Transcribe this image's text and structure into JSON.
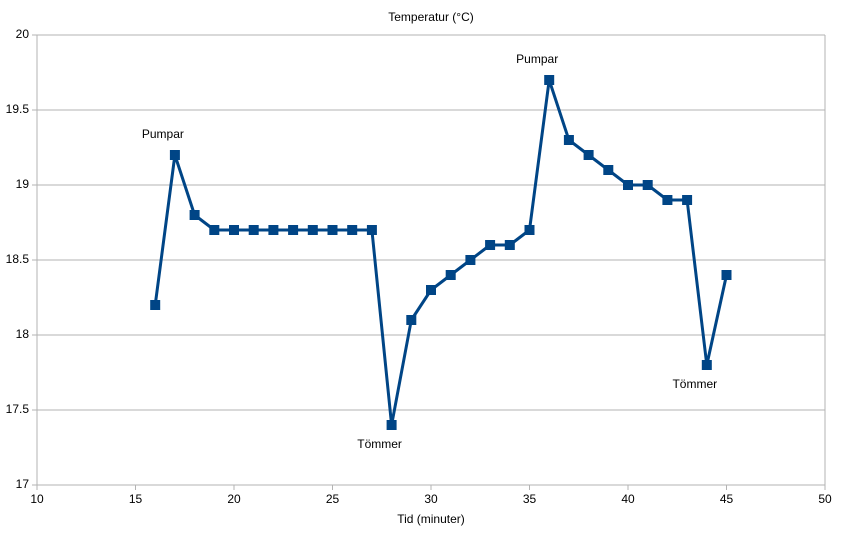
{
  "chart_data": {
    "type": "line",
    "title": "Temperatur (°C)",
    "x_label": "Tid (minuter)",
    "x": [
      16,
      17,
      18,
      19,
      20,
      21,
      22,
      23,
      24,
      25,
      26,
      27,
      28,
      29,
      30,
      31,
      32,
      33,
      34,
      35,
      36,
      37,
      38,
      39,
      40,
      41,
      42,
      43,
      44,
      45
    ],
    "series": [
      {
        "name": "Temperatur",
        "color": "#004586",
        "values": [
          18.2,
          19.2,
          18.8,
          18.7,
          18.7,
          18.7,
          18.7,
          18.7,
          18.7,
          18.7,
          18.7,
          18.7,
          17.4,
          18.1,
          18.3,
          18.4,
          18.5,
          18.6,
          18.6,
          18.7,
          19.7,
          19.3,
          19.2,
          19.1,
          19.0,
          19.0,
          18.9,
          18.9,
          17.8,
          18.4
        ]
      }
    ],
    "annotations": [
      {
        "text": "Pumpar",
        "x": 17
      },
      {
        "text": "Tömmer",
        "x": 28
      },
      {
        "text": "Pumpar",
        "x": 36
      },
      {
        "text": "Tömmer",
        "x": 44
      }
    ],
    "xlim": [
      10,
      50
    ],
    "xticks": [
      10,
      15,
      20,
      25,
      30,
      35,
      40,
      45,
      50
    ],
    "ylim": [
      17,
      20
    ],
    "yticks": [
      17,
      17.5,
      18,
      18.5,
      19,
      19.5,
      20
    ],
    "grid": true
  }
}
